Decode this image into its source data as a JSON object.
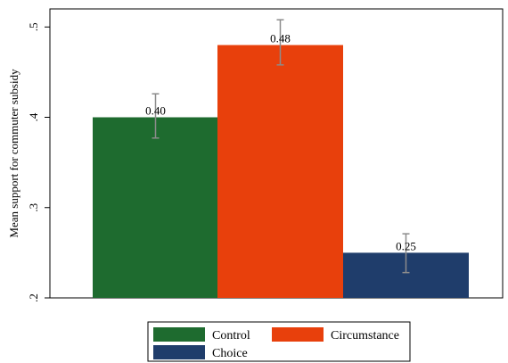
{
  "chart_data": {
    "type": "bar",
    "categories": [
      "Control",
      "Circumstance",
      "Choice"
    ],
    "values": [
      0.4,
      0.48,
      0.25
    ],
    "value_labels": [
      "0.40",
      "0.48",
      "0.25"
    ],
    "error_bars": [
      {
        "low": 0.377,
        "high": 0.426
      },
      {
        "low": 0.458,
        "high": 0.508
      },
      {
        "low": 0.228,
        "high": 0.271
      }
    ],
    "ylabel": "Mean support for commuter subsidy",
    "xlabel": "",
    "ylim": [
      0.2,
      0.52
    ],
    "yticks": [
      0.2,
      0.3,
      0.4,
      0.5
    ],
    "ytick_labels": [
      ".2",
      ".3",
      ".4",
      ".5"
    ],
    "grid": false,
    "legend_position": "bottom",
    "colors": {
      "Control": "#1e6b2f",
      "Circumstance": "#e8400c",
      "Choice": "#1f3d6b",
      "error_bar": "#8c8c8c"
    }
  }
}
